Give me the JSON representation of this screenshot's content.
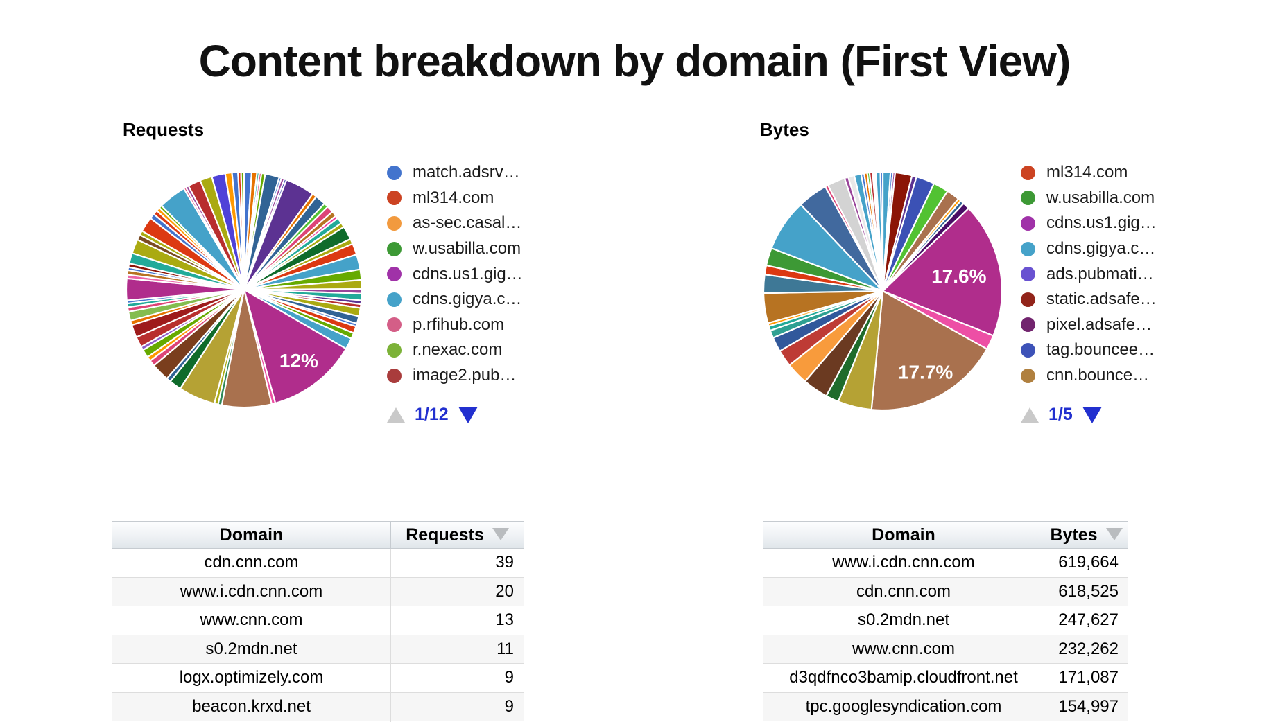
{
  "page_title": "Content breakdown by domain (First View)",
  "colors": {
    "link_blue": "#2230CF",
    "pager_up_gray": "#C9C9C9",
    "pie_label_white": "#FFFFFF",
    "requests_highlight": "#B02D8C",
    "bytes_highlight_magenta": "#B02D8C",
    "bytes_highlight_brown": "#A9714E"
  },
  "chart_data": [
    {
      "type": "pie",
      "title": "Requests",
      "pagination": "1/12",
      "legend_position": "right",
      "legend": [
        {
          "label": "match.adsrv…",
          "color": "#4374CD"
        },
        {
          "label": "ml314.com",
          "color": "#CC4322"
        },
        {
          "label": "as-sec.casal…",
          "color": "#F29A3E"
        },
        {
          "label": "w.usabilla.com",
          "color": "#3D9935"
        },
        {
          "label": "cdns.us1.gig…",
          "color": "#A032A8"
        },
        {
          "label": "cdns.gigya.c…",
          "color": "#45A2C9"
        },
        {
          "label": "p.rfihub.com",
          "color": "#D45E87"
        },
        {
          "label": "r.nexac.com",
          "color": "#7CB238"
        },
        {
          "label": "image2.pub…",
          "color": "#A93C3C"
        }
      ],
      "labeled_slices": [
        {
          "label": "12%",
          "value_pct": 12.0
        }
      ],
      "slices": [
        [
          "#4374CD",
          1.0
        ],
        [
          "#E67300",
          0.7
        ],
        [
          "#22AA99",
          0.3
        ],
        [
          "#DD4477",
          0.3
        ],
        [
          "#66AA00",
          0.5
        ],
        [
          "#316395",
          1.9
        ],
        [
          "#4374CD",
          0.3
        ],
        [
          "#994499",
          0.4
        ],
        [
          "#3B3EAC",
          0.3
        ],
        [
          "#5C3292",
          3.9
        ],
        [
          "#E67300",
          0.6
        ],
        [
          "#316395",
          1.4
        ],
        [
          "#52C232",
          0.6
        ],
        [
          "#DD4477",
          0.9
        ],
        [
          "#B77322",
          0.7
        ],
        [
          "#EC3C9C",
          0.4
        ],
        [
          "#22AA99",
          0.8
        ],
        [
          "#AAAA11",
          0.6
        ],
        [
          "#0F6B2B",
          1.8
        ],
        [
          "#AAAA11",
          0.7
        ],
        [
          "#DC3912",
          1.5
        ],
        [
          "#45A2C9",
          2.0
        ],
        [
          "#66AA00",
          1.4
        ],
        [
          "#AAAA11",
          1.2
        ],
        [
          "#994499",
          0.6
        ],
        [
          "#22AA99",
          0.9
        ],
        [
          "#5C3292",
          0.5
        ],
        [
          "#B82E2E",
          0.5
        ],
        [
          "#AAAA11",
          1.1
        ],
        [
          "#316395",
          1.0
        ],
        [
          "#4374CD",
          0.4
        ],
        [
          "#DC3912",
          0.9
        ],
        [
          "#66AA00",
          0.8
        ],
        [
          "#45A2C9",
          1.5
        ],
        [
          "#B02D8C",
          12.0,
          "12%",
          0.76
        ],
        [
          "#EC4FA2",
          0.5
        ],
        [
          "#A9714E",
          6.6
        ],
        [
          "#2E8857",
          0.5
        ],
        [
          "#AAAA11",
          0.5
        ],
        [
          "#B5A234",
          4.9
        ],
        [
          "#0F6B2B",
          1.6
        ],
        [
          "#316395",
          0.6
        ],
        [
          "#7A3E1D",
          2.4
        ],
        [
          "#DD4477",
          0.8
        ],
        [
          "#FF9900",
          0.6
        ],
        [
          "#66AA00",
          1.1
        ],
        [
          "#8C5EC9",
          0.5
        ],
        [
          "#B82E2E",
          1.4
        ],
        [
          "#9E1B1B",
          1.7
        ],
        [
          "#E67300",
          0.6
        ],
        [
          "#84BD4F",
          1.2
        ],
        [
          "#DD4477",
          0.6
        ],
        [
          "#22AA99",
          0.5
        ],
        [
          "#4374CD",
          0.4
        ],
        [
          "#B02D8C",
          2.9
        ],
        [
          "#EC66A8",
          0.5
        ],
        [
          "#B77322",
          0.6
        ],
        [
          "#4374CD",
          0.4
        ],
        [
          "#8B1507",
          0.5
        ],
        [
          "#22AA99",
          1.4
        ],
        [
          "#AAAA11",
          1.9
        ],
        [
          "#7A4B22",
          0.7
        ],
        [
          "#AAAA11",
          0.6
        ],
        [
          "#DC3912",
          2.0
        ],
        [
          "#4374CD",
          0.7
        ],
        [
          "#DC3912",
          0.6
        ],
        [
          "#FF9900",
          0.5
        ],
        [
          "#66AA00",
          0.4
        ],
        [
          "#45A2C9",
          3.7
        ],
        [
          "#DD4477",
          0.3
        ],
        [
          "#994499",
          0.4
        ],
        [
          "#B82E2E",
          1.7
        ],
        [
          "#AAAA11",
          1.6
        ],
        [
          "#4F42D8",
          1.8
        ],
        [
          "#FF9900",
          0.9
        ],
        [
          "#4374CD",
          0.8
        ],
        [
          "#DC3912",
          0.4
        ],
        [
          "#66AA00",
          0.4
        ]
      ]
    },
    {
      "type": "pie",
      "title": "Bytes",
      "pagination": "1/5",
      "legend_position": "right",
      "legend": [
        {
          "label": "ml314.com",
          "color": "#CC4322"
        },
        {
          "label": "w.usabilla.com",
          "color": "#3D9935"
        },
        {
          "label": "cdns.us1.gig…",
          "color": "#A032A8"
        },
        {
          "label": "cdns.gigya.c…",
          "color": "#45A2C9"
        },
        {
          "label": "ads.pubmati…",
          "color": "#6952D1"
        },
        {
          "label": "static.adsafe…",
          "color": "#92241A"
        },
        {
          "label": "pixel.adsafe…",
          "color": "#72246E"
        },
        {
          "label": "tag.bouncee…",
          "color": "#3D52B8"
        },
        {
          "label": "cnn.bounce…",
          "color": "#B0803F"
        }
      ],
      "labeled_slices": [
        {
          "label": "17.6%",
          "value_pct": 17.6
        },
        {
          "label": "17.7%",
          "value_pct": 17.7
        }
      ],
      "slices": [
        [
          "#45A2C9",
          1.0
        ],
        [
          "#4374CD",
          0.3
        ],
        [
          "#994499",
          0.3
        ],
        [
          "#8B1507",
          2.2
        ],
        [
          "#5C3292",
          0.6
        ],
        [
          "#3B51B5",
          2.4
        ],
        [
          "#52C232",
          2.0
        ],
        [
          "#A9714E",
          1.7
        ],
        [
          "#FF9900",
          0.4
        ],
        [
          "#316395",
          0.5
        ],
        [
          "#4A0D66",
          0.9
        ],
        [
          "#B02D8C",
          17.6,
          "17.6%",
          0.65
        ],
        [
          "#ED4FA5",
          1.9
        ],
        [
          "#A9714E",
          17.7,
          "17.7%",
          0.77
        ],
        [
          "#B5A234",
          4.4
        ],
        [
          "#1F6B2B",
          1.7
        ],
        [
          "#6B3A21",
          3.3
        ],
        [
          "#F89B3C",
          2.9
        ],
        [
          "#BE3B35",
          2.2
        ],
        [
          "#31589B",
          1.9
        ],
        [
          "#2FA092",
          1.0
        ],
        [
          "#22AA99",
          0.6
        ],
        [
          "#FF9900",
          0.4
        ],
        [
          "#B77322",
          3.9
        ],
        [
          "#3E7896",
          2.4
        ],
        [
          "#DC3912",
          1.2
        ],
        [
          "#3D9935",
          2.3
        ],
        [
          "#45A2C9",
          6.8
        ],
        [
          "#41699E",
          3.9
        ],
        [
          "#DD4477",
          0.4
        ],
        [
          "#D3D3D3",
          2.3
        ],
        [
          "#994499",
          0.5
        ],
        [
          "#E8E8E8",
          0.8
        ],
        [
          "#45A2C9",
          0.9
        ],
        [
          "#4374CD",
          0.4
        ],
        [
          "#E67300",
          0.4
        ],
        [
          "#52C232",
          0.3
        ],
        [
          "#B82E2E",
          0.4
        ],
        [
          "#DC3912",
          0.2
        ],
        [
          "#66AA00",
          0.2
        ],
        [
          "#45A2C9",
          0.6
        ],
        [
          "#4374CD",
          0.3
        ]
      ]
    },
    {
      "type": "table",
      "columns": [
        "Domain",
        "Requests"
      ],
      "sorted_by": "Requests",
      "sort_direction": "desc",
      "rows": [
        [
          "cdn.cnn.com",
          "39"
        ],
        [
          "www.i.cdn.cnn.com",
          "20"
        ],
        [
          "www.cnn.com",
          "13"
        ],
        [
          "s0.2mdn.net",
          "11"
        ],
        [
          "logx.optimizely.com",
          "9"
        ],
        [
          "beacon.krxd.net",
          "9"
        ]
      ]
    },
    {
      "type": "table",
      "columns": [
        "Domain",
        "Bytes"
      ],
      "sorted_by": "Bytes",
      "sort_direction": "desc",
      "rows": [
        [
          "www.i.cdn.cnn.com",
          "619,664"
        ],
        [
          "cdn.cnn.com",
          "618,525"
        ],
        [
          "s0.2mdn.net",
          "247,627"
        ],
        [
          "www.cnn.com",
          "232,262"
        ],
        [
          "d3qdfnco3bamip.cloudfront.net",
          "171,087"
        ],
        [
          "tpc.googlesyndication.com",
          "154,997"
        ]
      ]
    }
  ]
}
